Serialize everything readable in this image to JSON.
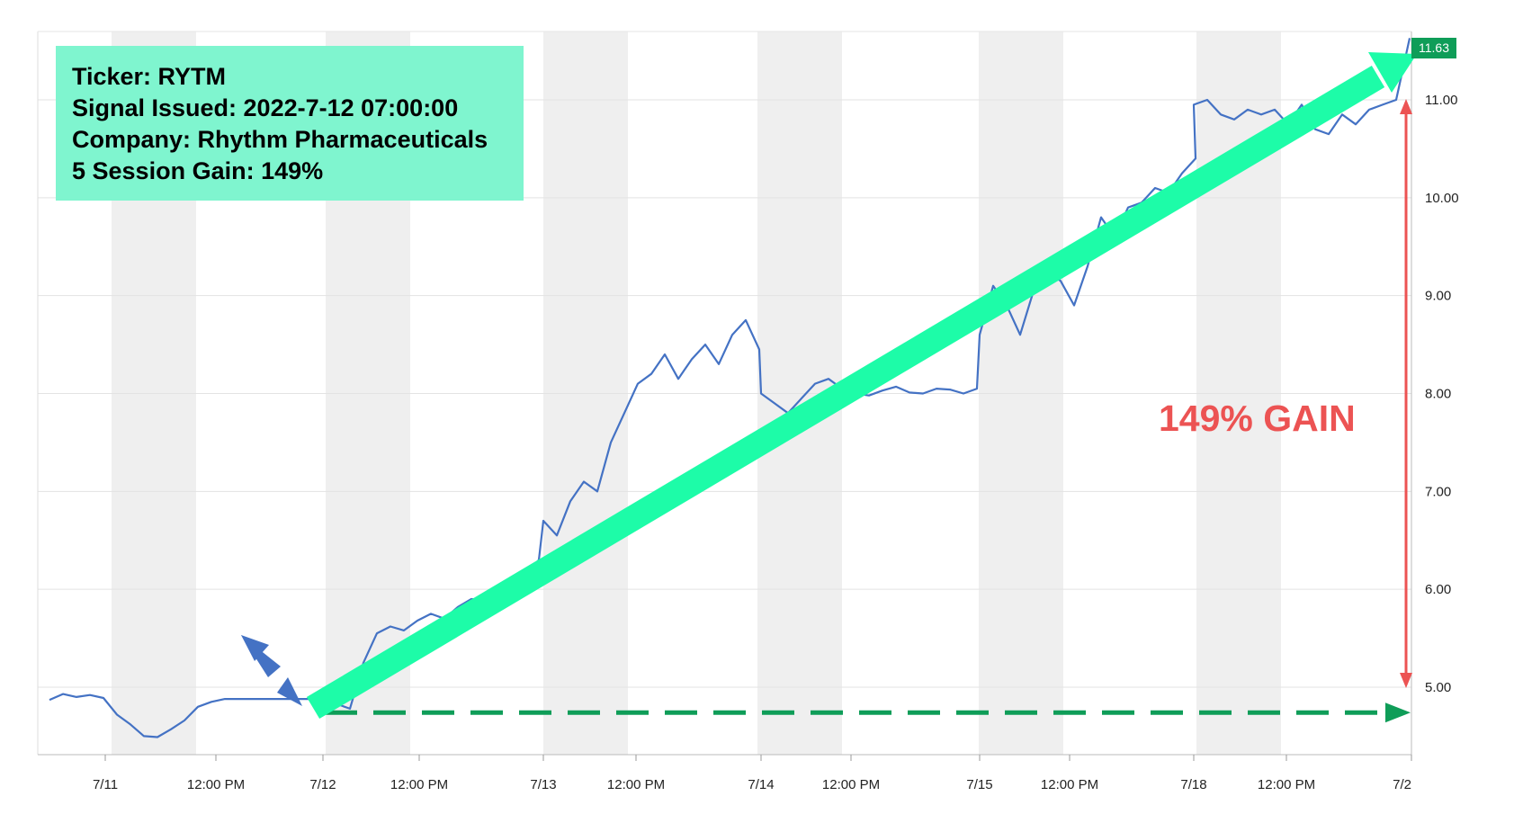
{
  "info": {
    "ticker_line": "Ticker:  RYTM",
    "signal_line": "Signal Issued: 2022-7-12 07:00:00",
    "company_line": "Company: Rhythm Pharmaceuticals",
    "gain_line": "5 Session Gain: 149%"
  },
  "annotation": {
    "gain_text": "149% GAIN",
    "gain_color": "#ec5353"
  },
  "colors": {
    "line": "#4472c4",
    "trend_arrow": "#1dfca8",
    "baseline": "#0f9d58",
    "badge": "#0f9d58",
    "session_shade": "#efefef"
  },
  "chart_data": {
    "type": "line",
    "title": "",
    "xlabel": "",
    "ylabel": "",
    "ylim": [
      4.35,
      11.8
    ],
    "y_ticks": [
      "5.00",
      "6.00",
      "7.00",
      "8.00",
      "9.00",
      "10.00",
      "11.00"
    ],
    "x_ticks": [
      "7/11",
      "12:00 PM",
      "7/12",
      "12:00 PM",
      "7/13",
      "12:00 PM",
      "7/14",
      "12:00 PM",
      "7/15",
      "12:00 PM",
      "7/18",
      "12:00 PM",
      "7/2"
    ],
    "last_price": "11.63",
    "baseline_price": 4.74,
    "grid": true,
    "series": [
      {
        "x": [
          "7/11 07:00",
          "7/11 08:00",
          "7/11 09:00",
          "7/11 10:00",
          "7/11 11:00",
          "7/11 12:00",
          "7/11 13:00",
          "7/11 14:00",
          "7/11 15:00",
          "7/11 16:00",
          "7/11 17:00",
          "7/11 18:00",
          "7/11 19:00",
          "7/11 20:00",
          "7/12 04:00",
          "7/12 05:00",
          "7/12 06:00",
          "7/12 07:00",
          "7/12 08:00",
          "7/12 09:00",
          "7/12 10:00",
          "7/12 11:00",
          "7/12 12:00",
          "7/12 13:00",
          "7/12 14:00",
          "7/12 15:00",
          "7/12 16:00",
          "7/12 17:00",
          "7/12 18:00",
          "7/12 19:00",
          "7/12 20:00",
          "7/13 04:00",
          "7/13 05:00",
          "7/13 06:00",
          "7/13 07:00",
          "7/13 08:00",
          "7/13 09:00",
          "7/13 10:00",
          "7/13 11:00",
          "7/13 12:00",
          "7/13 13:00",
          "7/13 14:00",
          "7/13 15:00",
          "7/13 16:00",
          "7/13 17:00",
          "7/13 18:00",
          "7/13 19:00",
          "7/13 20:00",
          "7/14 04:00",
          "7/14 05:00",
          "7/14 06:00",
          "7/14 07:00",
          "7/14 08:00",
          "7/14 09:00",
          "7/14 10:00",
          "7/14 11:00",
          "7/14 12:00",
          "7/14 13:00",
          "7/14 14:00",
          "7/14 15:00",
          "7/14 16:00",
          "7/14 17:00",
          "7/14 18:00",
          "7/14 19:00",
          "7/14 20:00",
          "7/15 04:00",
          "7/15 05:00",
          "7/15 06:00",
          "7/15 07:00",
          "7/15 08:00",
          "7/15 09:00",
          "7/15 10:00",
          "7/15 11:00",
          "7/15 12:00",
          "7/15 13:00",
          "7/15 14:00",
          "7/15 15:00",
          "7/15 16:00",
          "7/15 17:00",
          "7/15 18:00",
          "7/15 19:00",
          "7/15 20:00",
          "7/18 04:00",
          "7/18 05:00",
          "7/18 06:00",
          "7/18 07:00",
          "7/18 08:00",
          "7/18 09:00",
          "7/18 10:00",
          "7/18 11:00",
          "7/18 12:00",
          "7/18 13:00",
          "7/18 14:00",
          "7/18 15:00",
          "7/18 16:00",
          "7/18 17:00",
          "7/18 18:00",
          "7/18 19:00",
          "7/18 20:00"
        ],
        "values": [
          4.87,
          4.93,
          4.9,
          4.92,
          4.89,
          4.72,
          4.62,
          4.5,
          4.49,
          4.57,
          4.66,
          4.8,
          4.85,
          4.88,
          4.88,
          4.83,
          4.78,
          5.25,
          5.55,
          5.62,
          5.58,
          5.68,
          5.75,
          5.7,
          5.82,
          5.9,
          5.88,
          5.97,
          6.05,
          6.15,
          6.3,
          6.7,
          6.55,
          6.9,
          7.1,
          7.0,
          7.5,
          7.8,
          8.1,
          8.2,
          8.4,
          8.15,
          8.35,
          8.5,
          8.3,
          8.6,
          8.75,
          8.45,
          8.0,
          7.9,
          7.8,
          7.95,
          8.1,
          8.15,
          8.05,
          8.0,
          7.98,
          8.03,
          8.07,
          8.01,
          8.0,
          8.05,
          8.04,
          8.0,
          8.05,
          8.6,
          9.1,
          8.9,
          8.6,
          9.05,
          9.25,
          9.15,
          8.9,
          9.3,
          9.8,
          9.6,
          9.9,
          9.95,
          10.1,
          10.05,
          10.25,
          10.4,
          10.95,
          11.0,
          10.85,
          10.8,
          10.9,
          10.85,
          10.9,
          10.75,
          10.95,
          10.7,
          10.65,
          10.85,
          10.75,
          10.9,
          10.95,
          11.0,
          11.63
        ]
      }
    ]
  }
}
